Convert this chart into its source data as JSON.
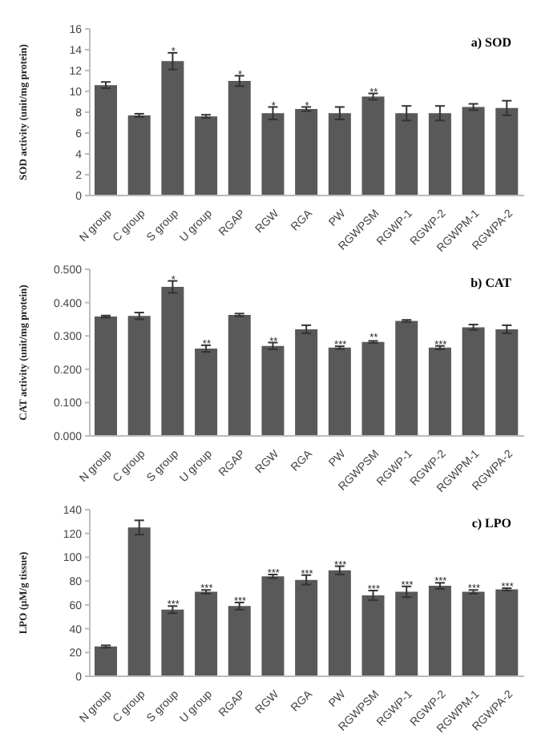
{
  "chart_data": [
    {
      "type": "bar",
      "title": "a) SOD",
      "ylabel": "SOD activity (unit/mg protein)",
      "categories": [
        "N group",
        "C group",
        "S group",
        "U group",
        "RGAP",
        "RGW",
        "RGA",
        "PW",
        "RGWPSM",
        "RGWP-1",
        "RGWP-2",
        "RGWPM-1",
        "RGWPA-2"
      ],
      "values": [
        10.6,
        7.7,
        12.9,
        7.6,
        11.0,
        7.9,
        8.3,
        7.9,
        9.5,
        7.9,
        7.9,
        8.5,
        8.4
      ],
      "errors": [
        0.3,
        0.15,
        0.8,
        0.15,
        0.5,
        0.6,
        0.2,
        0.6,
        0.3,
        0.7,
        0.7,
        0.3,
        0.7
      ],
      "color": "#595959",
      "ylim": [
        0,
        16
      ],
      "yticks": [
        0,
        2,
        4,
        6,
        8,
        10,
        12,
        14,
        16
      ],
      "grid": false,
      "annotations": [
        {
          "text": "*",
          "x": "S group",
          "y": 13.7
        },
        {
          "text": "*",
          "x": "RGAP",
          "y": 11.5
        },
        {
          "text": "*",
          "x": "RGW",
          "y": 8.5
        },
        {
          "text": "*",
          "x": "RGA",
          "y": 8.5
        },
        {
          "text": "**",
          "x": "RGWPSM",
          "y": 9.8
        }
      ]
    },
    {
      "type": "bar",
      "title": "b) CAT",
      "ylabel": "CAT activity (unit/mg protein)",
      "categories": [
        "N group",
        "C group",
        "S group",
        "U group",
        "RGAP",
        "RGW",
        "RGA",
        "PW",
        "RGWPSM",
        "RGWP-1",
        "RGWP-2",
        "RGWPM-1",
        "RGWPA-2"
      ],
      "values": [
        0.358,
        0.36,
        0.447,
        0.262,
        0.363,
        0.27,
        0.32,
        0.265,
        0.282,
        0.345,
        0.265,
        0.326,
        0.32
      ],
      "errors": [
        0.003,
        0.01,
        0.018,
        0.01,
        0.004,
        0.01,
        0.012,
        0.004,
        0.003,
        0.003,
        0.005,
        0.008,
        0.012
      ],
      "color": "#595959",
      "ylim": [
        0,
        0.5
      ],
      "yticks": [
        {
          "value": 0,
          "label": "0.000"
        },
        {
          "value": 0.1,
          "label": "0.100"
        },
        {
          "value": 0.2,
          "label": "0.200"
        },
        {
          "value": 0.3,
          "label": "0.300"
        },
        {
          "value": 0.4,
          "label": "0.400"
        },
        {
          "value": 0.5,
          "label": "0.500"
        }
      ],
      "grid": false,
      "annotations": [
        {
          "text": "*",
          "x": "S group",
          "y": 0.465
        },
        {
          "text": "**",
          "x": "U group",
          "y": 0.272
        },
        {
          "text": "**",
          "x": "RGW",
          "y": 0.28
        },
        {
          "text": "***",
          "x": "PW",
          "y": 0.269
        },
        {
          "text": "**",
          "x": "RGWPSM",
          "y": 0.292
        },
        {
          "text": "***",
          "x": "RGWP-2",
          "y": 0.27
        }
      ]
    },
    {
      "type": "bar",
      "title": "c) LPO",
      "ylabel": "LPO (μM/g tissue)",
      "categories": [
        "N group",
        "C group",
        "S group",
        "U group",
        "RGAP",
        "RGW",
        "RGA",
        "PW",
        "RGWPSM",
        "RGWP-1",
        "RGWP-2",
        "RGWPM-1",
        "RGWPA-2"
      ],
      "values": [
        25,
        125,
        56,
        71,
        59,
        84,
        81,
        89,
        68,
        71,
        76,
        71,
        73
      ],
      "errors": [
        1,
        6,
        3,
        1.5,
        3,
        1.5,
        4,
        3.5,
        4,
        4.5,
        2.5,
        1.5,
        1
      ],
      "color": "#595959",
      "ylim": [
        0,
        140
      ],
      "yticks": [
        0,
        20,
        40,
        60,
        80,
        100,
        120,
        140
      ],
      "grid": false,
      "annotations": [
        {
          "text": "***",
          "x": "S group",
          "y": 59
        },
        {
          "text": "***",
          "x": "U group",
          "y": 72.5
        },
        {
          "text": "***",
          "x": "RGAP",
          "y": 62
        },
        {
          "text": "***",
          "x": "RGW",
          "y": 85.5
        },
        {
          "text": "***",
          "x": "RGA",
          "y": 85
        },
        {
          "text": "***",
          "x": "PW",
          "y": 92.5
        },
        {
          "text": "***",
          "x": "RGWPSM",
          "y": 72
        },
        {
          "text": "***",
          "x": "RGWP-1",
          "y": 75.5
        },
        {
          "text": "***",
          "x": "RGWP-2",
          "y": 78.5
        },
        {
          "text": "***",
          "x": "RGWPM-1",
          "y": 72.5
        },
        {
          "text": "***",
          "x": "RGWPA-2",
          "y": 74
        }
      ]
    }
  ]
}
